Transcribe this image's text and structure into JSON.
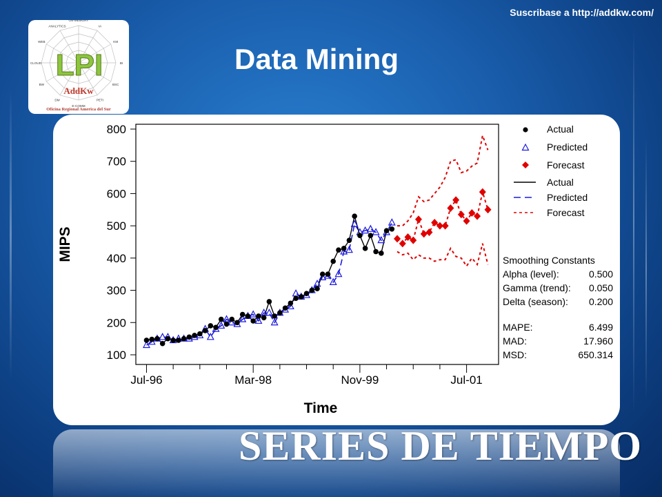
{
  "header": {
    "subscribe_text": "Suscribase a http://addkw.com/",
    "title": "Data Mining",
    "footer_title": "SERIES DE TIEMPO"
  },
  "logo": {
    "text": "LPI",
    "brand": "AddKw",
    "org": "Oficina Regional America del Sur",
    "radar_labels": [
      "ON-MEMORY",
      "IA",
      "KM",
      "BI",
      "BSC",
      "PETI",
      "E-COMM",
      "DM",
      "BW",
      "CLOUD",
      "WEB",
      "ANALYTICS"
    ]
  },
  "chart_data": {
    "type": "line",
    "xlabel": "Time",
    "ylabel": "MIPS",
    "ylim": [
      100,
      800
    ],
    "yticks": [
      100,
      200,
      300,
      400,
      500,
      600,
      700,
      800
    ],
    "x_tick_labels": [
      "Jul-96",
      "Mar-98",
      "Nov-99",
      "Jul-01"
    ],
    "x_tick_index": [
      0,
      20,
      40,
      60
    ],
    "xlim": [
      -2,
      66
    ],
    "grid": false,
    "legend": {
      "placement": "right",
      "entries": [
        {
          "label": "Actual",
          "marker": "dot",
          "color": "#000000"
        },
        {
          "label": "Predicted",
          "marker": "triangle",
          "color": "#1a1adc"
        },
        {
          "label": "Forecast",
          "marker": "diamond",
          "color": "#e00000"
        },
        {
          "label": "Actual",
          "line": "solid",
          "color": "#000000"
        },
        {
          "label": "Predicted",
          "line": "dashed",
          "color": "#1a1adc"
        },
        {
          "label": "Forecast",
          "line": "dotted",
          "color": "#e00000"
        }
      ]
    },
    "smoothing": {
      "heading": "Smoothing Constants",
      "rows": [
        {
          "label": "Alpha (level):",
          "value": "0.500"
        },
        {
          "label": "Gamma (trend):",
          "value": "0.050"
        },
        {
          "label": "Delta (season):",
          "value": "0.200"
        }
      ]
    },
    "accuracy": {
      "rows": [
        {
          "label": "MAPE:",
          "value": "6.499"
        },
        {
          "label": "MAD:",
          "value": "17.960"
        },
        {
          "label": "MSD:",
          "value": "650.314"
        }
      ]
    },
    "series": [
      {
        "name": "Actual",
        "x_start": 0,
        "values": [
          145,
          148,
          150,
          135,
          150,
          145,
          145,
          150,
          155,
          160,
          165,
          175,
          190,
          185,
          210,
          195,
          210,
          200,
          225,
          220,
          205,
          220,
          215,
          265,
          220,
          230,
          245,
          260,
          275,
          280,
          290,
          300,
          305,
          350,
          350,
          390,
          425,
          430,
          455,
          530,
          470,
          430,
          470,
          420,
          415,
          485,
          490
        ]
      },
      {
        "name": "Predicted",
        "x_start": 0,
        "values": [
          130,
          140,
          150,
          155,
          155,
          145,
          150,
          150,
          150,
          155,
          160,
          180,
          155,
          180,
          190,
          210,
          200,
          195,
          210,
          220,
          225,
          205,
          230,
          230,
          200,
          230,
          240,
          250,
          290,
          280,
          285,
          300,
          320,
          340,
          345,
          325,
          350,
          420,
          425,
          505,
          480,
          485,
          490,
          480,
          455,
          480,
          510
        ]
      },
      {
        "name": "Forecast",
        "x_start": 47,
        "values": [
          460,
          445,
          465,
          455,
          520,
          475,
          480,
          510,
          500,
          500,
          555,
          580,
          535,
          515,
          540,
          530,
          605,
          550
        ]
      },
      {
        "name": "Forecast upper",
        "x_start": 47,
        "values": [
          500,
          500,
          515,
          540,
          590,
          575,
          580,
          600,
          620,
          650,
          700,
          705,
          665,
          670,
          685,
          695,
          780,
          735
        ]
      },
      {
        "name": "Forecast lower",
        "x_start": 47,
        "values": [
          420,
          410,
          415,
          395,
          410,
          400,
          400,
          390,
          395,
          395,
          430,
          405,
          400,
          375,
          400,
          380,
          445,
          380
        ]
      }
    ]
  }
}
